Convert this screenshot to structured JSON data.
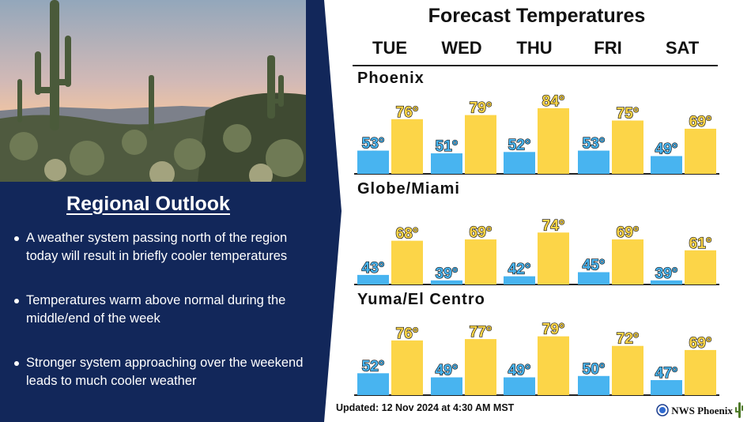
{
  "panel": {
    "title": "Regional Outlook",
    "bullets": [
      "A weather system passing north of the region today will result in briefly cooler temperatures",
      "Temperatures warm above normal during the middle/end of the week",
      "Stronger system approaching over the weekend leads to much cooler weather"
    ]
  },
  "header": {
    "title": "Forecast Temperatures",
    "days": [
      "TUE",
      "WED",
      "THU",
      "FRI",
      "SAT"
    ]
  },
  "footer": {
    "updated": "Updated:  12 Nov 2024 at 4:30 AM MST",
    "brand": "NWS Phoenix"
  },
  "colors": {
    "navy": "#12275a",
    "low_bar": "#48b4f0",
    "high_bar": "#fcd548",
    "outline": "#111111"
  },
  "chart_data": [
    {
      "type": "bar",
      "title": "Phoenix",
      "categories": [
        "TUE",
        "WED",
        "THU",
        "FRI",
        "SAT"
      ],
      "series": [
        {
          "values": [
            53,
            51,
            52,
            53,
            49
          ]
        },
        {
          "values": [
            76,
            79,
            84,
            75,
            69
          ]
        }
      ],
      "data_labels": [
        [
          "53°",
          "51°",
          "52°",
          "53°",
          "49°"
        ],
        [
          "76°",
          "79°",
          "84°",
          "75°",
          "69°"
        ]
      ]
    },
    {
      "type": "bar",
      "title": "Globe/Miami",
      "categories": [
        "TUE",
        "WED",
        "THU",
        "FRI",
        "SAT"
      ],
      "series": [
        {
          "values": [
            43,
            39,
            42,
            45,
            39
          ]
        },
        {
          "values": [
            68,
            69,
            74,
            69,
            61
          ]
        }
      ],
      "data_labels": [
        [
          "43°",
          "39°",
          "42°",
          "45°",
          "39°"
        ],
        [
          "68°",
          "69°",
          "74°",
          "69°",
          "61°"
        ]
      ]
    },
    {
      "type": "bar",
      "title": "Yuma/El Centro",
      "categories": [
        "TUE",
        "WED",
        "THU",
        "FRI",
        "SAT"
      ],
      "series": [
        {
          "values": [
            52,
            49,
            49,
            50,
            47
          ]
        },
        {
          "values": [
            76,
            77,
            79,
            72,
            69
          ]
        }
      ],
      "data_labels": [
        [
          "52°",
          "49°",
          "49°",
          "50°",
          "47°"
        ],
        [
          "76°",
          "77°",
          "79°",
          "72°",
          "69°"
        ]
      ]
    }
  ]
}
